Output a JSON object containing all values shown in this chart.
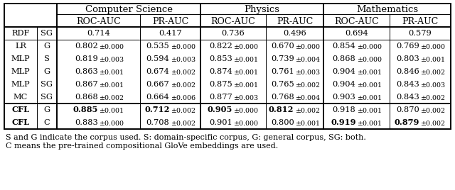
{
  "headers_top": [
    "Computer Science",
    "Physics",
    "Mathematics"
  ],
  "headers_sub": [
    "ROC-AUC",
    "PR-AUC",
    "ROC-AUC",
    "PR-AUC",
    "ROC-AUC",
    "PR-AUC"
  ],
  "col1": [
    "RDF",
    "LR",
    "MLP",
    "MLP",
    "MLP",
    "MC",
    "CFL",
    "CFL"
  ],
  "col2": [
    "SG",
    "G",
    "S",
    "G",
    "SG",
    "SG",
    "G",
    "C"
  ],
  "data": [
    [
      "0.714",
      "0.417",
      "0.736",
      "0.496",
      "0.694",
      "0.579"
    ],
    [
      "0.802",
      "0.535",
      "0.822",
      "0.670",
      "0.854",
      "0.769"
    ],
    [
      "0.819",
      "0.594",
      "0.853",
      "0.739",
      "0.868",
      "0.803"
    ],
    [
      "0.863",
      "0.674",
      "0.874",
      "0.761",
      "0.904",
      "0.846"
    ],
    [
      "0.867",
      "0.667",
      "0.875",
      "0.765",
      "0.904",
      "0.843"
    ],
    [
      "0.868",
      "0.664",
      "0.877",
      "0.768",
      "0.903",
      "0.843"
    ],
    [
      "0.885",
      "0.712",
      "0.905",
      "0.812",
      "0.918",
      "0.870"
    ],
    [
      "0.883",
      "0.708",
      "0.901",
      "0.800",
      "0.919",
      "0.879"
    ]
  ],
  "errors": [
    [
      "",
      "",
      "",
      "",
      "",
      ""
    ],
    [
      "±0.000",
      "±0.000",
      "±0.000",
      "±0.000",
      "±0.000",
      "±0.000"
    ],
    [
      "±0.003",
      "±0.003",
      "±0.001",
      "±0.004",
      "±0.000",
      "±0.001"
    ],
    [
      "±0.001",
      "±0.002",
      "±0.001",
      "±0.003",
      "±0.001",
      "±0.002"
    ],
    [
      "±0.001",
      "±0.002",
      "±0.001",
      "±0.002",
      "±0.001",
      "±0.003"
    ],
    [
      "±0.002",
      "±0.006",
      "±0.003",
      "±0.004",
      "±0.001",
      "±0.002"
    ],
    [
      "±0.001",
      "±0.002",
      "±0.000",
      "±0.002",
      "±0.001",
      "±0.002"
    ],
    [
      "±0.000",
      "±0.002",
      "±0.000",
      "±0.001",
      "±0.001",
      "±0.002"
    ]
  ],
  "bold_cells": [
    [
      false,
      false,
      false,
      false,
      false,
      false
    ],
    [
      false,
      false,
      false,
      false,
      false,
      false
    ],
    [
      false,
      false,
      false,
      false,
      false,
      false
    ],
    [
      false,
      false,
      false,
      false,
      false,
      false
    ],
    [
      false,
      false,
      false,
      false,
      false,
      false
    ],
    [
      false,
      false,
      false,
      false,
      false,
      false
    ],
    [
      true,
      true,
      true,
      true,
      false,
      false
    ],
    [
      false,
      false,
      false,
      false,
      true,
      true
    ]
  ],
  "bold_row": [
    false,
    false,
    false,
    false,
    false,
    false,
    true,
    true
  ],
  "footnote1": "S and G indicate the corpus used. S: domain-specific corpus, G: general corpus, SG: both.",
  "footnote2": "C means the pre-trained compositional GloVe embeddings are used.",
  "bg_color": "#ffffff"
}
